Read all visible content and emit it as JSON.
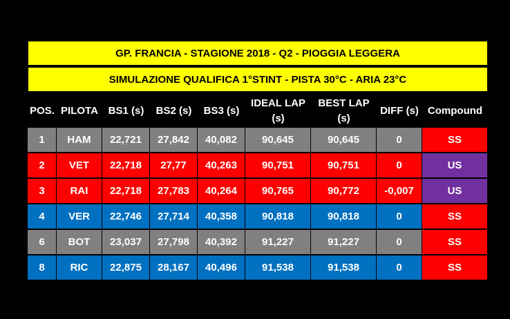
{
  "title": "GP. FRANCIA - STAGIONE 2018 - Q2 - PIOGGIA LEGGERA",
  "subtitle": "SIMULAZIONE QUALIFICA 1°STINT - PISTA 30°C  - ARIA 23°C",
  "headers": [
    "POS.",
    "PILOTA",
    "BS1 (s)",
    "BS2 (s)",
    "BS3 (s)",
    "IDEAL LAP (s)",
    "BEST LAP (s)",
    "DIFF (s)",
    "Compound"
  ],
  "rows": [
    {
      "pos": "1",
      "driver": "HAM",
      "bs1": "22,721",
      "bs2": "27,842",
      "bs3": "40,082",
      "ideal": "90,645",
      "best": "90,645",
      "diff": "0",
      "compound": "SS",
      "row_color": "#808080"
    },
    {
      "pos": "2",
      "driver": "VET",
      "bs1": "22,718",
      "bs2": "27,77",
      "bs3": "40,263",
      "ideal": "90,751",
      "best": "90,751",
      "diff": "0",
      "compound": "US",
      "row_color": "#ff0000"
    },
    {
      "pos": "3",
      "driver": "RAI",
      "bs1": "22,718",
      "bs2": "27,783",
      "bs3": "40,264",
      "ideal": "90,765",
      "best": "90,772",
      "diff": "-0,007",
      "compound": "US",
      "row_color": "#ff0000"
    },
    {
      "pos": "4",
      "driver": "VER",
      "bs1": "22,746",
      "bs2": "27,714",
      "bs3": "40,358",
      "ideal": "90,818",
      "best": "90,818",
      "diff": "0",
      "compound": "SS",
      "row_color": "#0070c0"
    },
    {
      "pos": "6",
      "driver": "BOT",
      "bs1": "23,037",
      "bs2": "27,798",
      "bs3": "40,392",
      "ideal": "91,227",
      "best": "91,227",
      "diff": "0",
      "compound": "SS",
      "row_color": "#808080"
    },
    {
      "pos": "8",
      "driver": "RIC",
      "bs1": "22,875",
      "bs2": "28,167",
      "bs3": "40,496",
      "ideal": "91,538",
      "best": "91,538",
      "diff": "0",
      "compound": "SS",
      "row_color": "#0070c0"
    }
  ],
  "compound_colors": {
    "SS": "#ff0000",
    "US": "#7030a0"
  }
}
